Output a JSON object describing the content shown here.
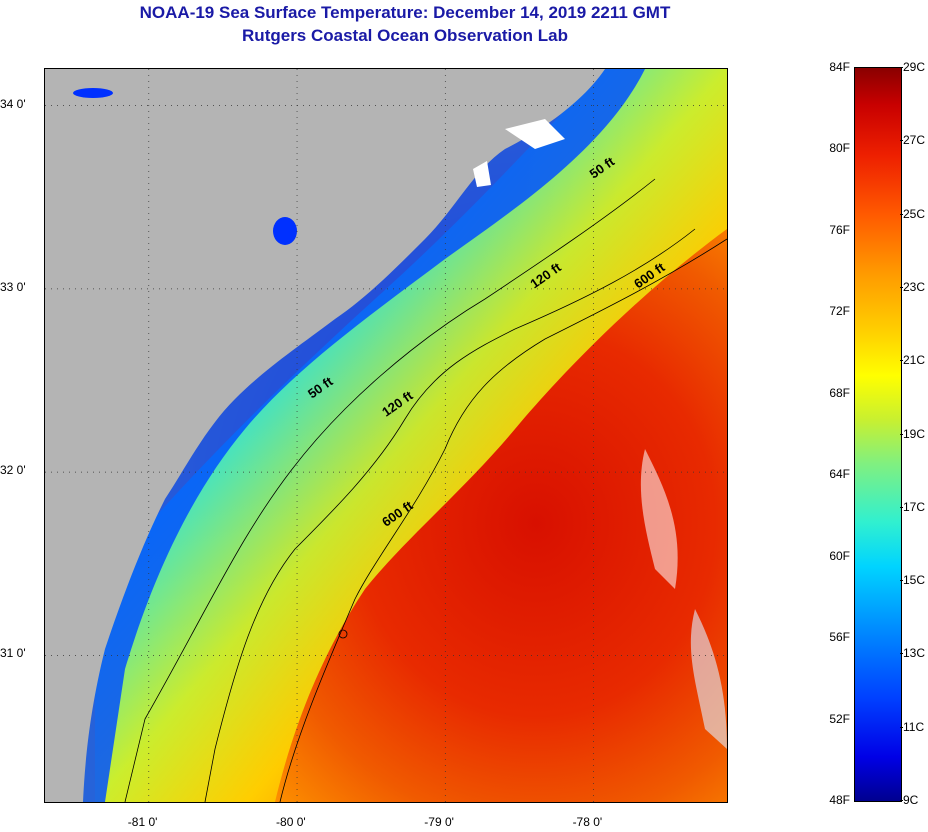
{
  "title": {
    "line1": "NOAA-19 Sea Surface Temperature:  December 14, 2019 2211 GMT",
    "line2": "Rutgers Coastal Ocean Observation Lab"
  },
  "map": {
    "lat_labels": [
      "34 0'",
      "33 0'",
      "32 0'",
      "31 0'"
    ],
    "lon_labels": [
      "-81 0'",
      "-80 0'",
      "-79 0'",
      "-78 0'"
    ],
    "lat_values": [
      34,
      33,
      32,
      31
    ],
    "lon_values": [
      -81,
      -80,
      -79,
      -78
    ],
    "extent": {
      "lon_min": -81.7,
      "lon_max": -77.1,
      "lat_min": 30.2,
      "lat_max": 34.2
    },
    "contour_labels": [
      {
        "text": "50 ft",
        "lon": -78.0,
        "lat": 33.6
      },
      {
        "text": "50 ft",
        "lon": -79.9,
        "lat": 32.4
      },
      {
        "text": "120 ft",
        "lon": -78.4,
        "lat": 33.0
      },
      {
        "text": "120 ft",
        "lon": -79.4,
        "lat": 32.3
      },
      {
        "text": "600 ft",
        "lon": -77.7,
        "lat": 33.0
      },
      {
        "text": "600 ft",
        "lon": -79.4,
        "lat": 31.7
      }
    ]
  },
  "colorbar": {
    "fahrenheit": [
      "84F",
      "80F",
      "76F",
      "72F",
      "68F",
      "64F",
      "60F",
      "56F",
      "52F",
      "48F"
    ],
    "celsius": [
      "29C",
      "27C",
      "25C",
      "23C",
      "21C",
      "19C",
      "17C",
      "15C",
      "13C",
      "11C",
      "9C"
    ]
  },
  "colors": {
    "land": "#b4b4b4",
    "title": "#1a1aa6",
    "contour": "#000000"
  }
}
